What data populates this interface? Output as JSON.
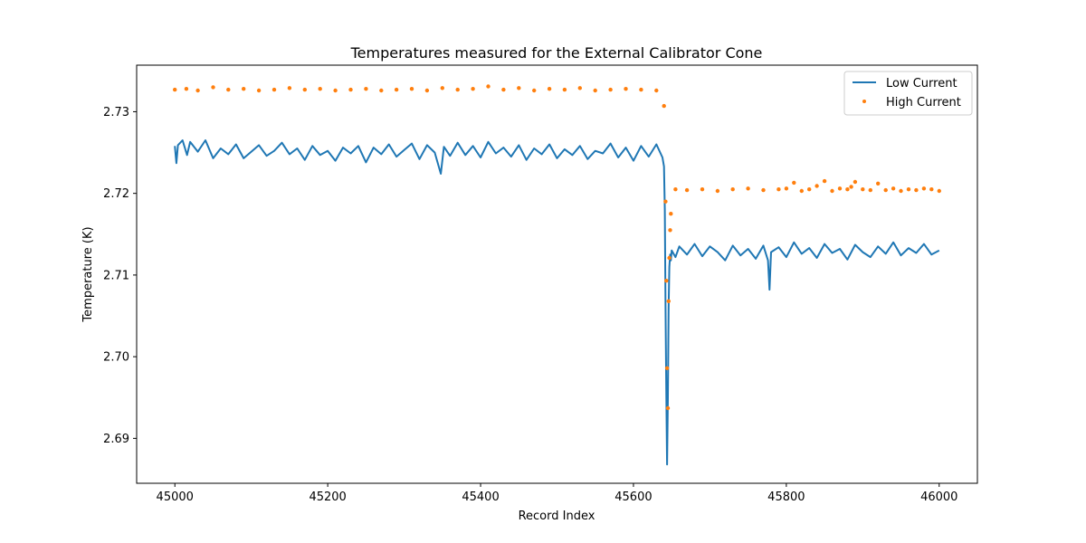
{
  "chart_data": {
    "type": "line",
    "title": "Temperatures measured for the External Calibrator Cone",
    "xlabel": "Record Index",
    "ylabel": "Temperature (K)",
    "xlim": [
      44950,
      46050
    ],
    "ylim": [
      2.6845,
      2.7357
    ],
    "xticks": [
      45000,
      45200,
      45400,
      45600,
      45800,
      46000
    ],
    "yticks": [
      2.69,
      2.7,
      2.71,
      2.72,
      2.73
    ],
    "ytick_labels": [
      "2.69",
      "2.70",
      "2.71",
      "2.72",
      "2.73"
    ],
    "grid": false,
    "legend_position": "top-right",
    "colors": {
      "low": "#1f77b4",
      "high": "#ff7f0e"
    },
    "series": [
      {
        "name": "Low Current",
        "kind": "line",
        "x": [
          45000,
          45002,
          45004,
          45010,
          45016,
          45020,
          45030,
          45040,
          45050,
          45060,
          45070,
          45080,
          45090,
          45100,
          45110,
          45120,
          45130,
          45140,
          45150,
          45160,
          45170,
          45180,
          45190,
          45200,
          45210,
          45220,
          45230,
          45240,
          45250,
          45260,
          45270,
          45280,
          45290,
          45300,
          45310,
          45320,
          45330,
          45340,
          45348,
          45352,
          45360,
          45370,
          45380,
          45390,
          45400,
          45410,
          45420,
          45430,
          45440,
          45450,
          45460,
          45470,
          45480,
          45490,
          45500,
          45510,
          45520,
          45530,
          45540,
          45550,
          45560,
          45570,
          45580,
          45590,
          45600,
          45610,
          45620,
          45630,
          45638,
          45640,
          45641,
          45642,
          45643,
          45644,
          45645,
          45646,
          45647,
          45648,
          45649,
          45650,
          45655,
          45660,
          45670,
          45680,
          45690,
          45700,
          45710,
          45720,
          45730,
          45740,
          45750,
          45760,
          45770,
          45776,
          45778,
          45780,
          45790,
          45800,
          45810,
          45820,
          45830,
          45840,
          45850,
          45860,
          45870,
          45880,
          45890,
          45900,
          45910,
          45920,
          45930,
          45940,
          45950,
          45960,
          45970,
          45980,
          45990,
          46000
        ],
        "values": [
          2.7258,
          2.7237,
          2.7259,
          2.7265,
          2.7247,
          2.7263,
          2.7251,
          2.7265,
          2.7243,
          2.7255,
          2.7248,
          2.726,
          2.7243,
          2.7251,
          2.7259,
          2.7246,
          2.7252,
          2.7262,
          2.7248,
          2.7255,
          2.7241,
          2.7258,
          2.7247,
          2.7252,
          2.724,
          2.7256,
          2.7249,
          2.7258,
          2.7238,
          2.7256,
          2.7248,
          2.726,
          2.7245,
          2.7253,
          2.7261,
          2.7242,
          2.7259,
          2.725,
          2.7224,
          2.7257,
          2.7246,
          2.7262,
          2.7247,
          2.7258,
          2.7244,
          2.7263,
          2.7249,
          2.7256,
          2.7245,
          2.7259,
          2.7241,
          2.7255,
          2.7248,
          2.726,
          2.7243,
          2.7254,
          2.7247,
          2.7258,
          2.7242,
          2.7252,
          2.7249,
          2.7261,
          2.7244,
          2.7256,
          2.724,
          2.7258,
          2.7245,
          2.726,
          2.7244,
          2.7233,
          2.718,
          2.706,
          2.695,
          2.6868,
          2.695,
          2.706,
          2.711,
          2.7125,
          2.7118,
          2.713,
          2.7122,
          2.7135,
          2.7125,
          2.7138,
          2.7123,
          2.7135,
          2.7128,
          2.7118,
          2.7136,
          2.7124,
          2.7132,
          2.712,
          2.7136,
          2.7118,
          2.7082,
          2.7128,
          2.7134,
          2.7122,
          2.714,
          2.7126,
          2.7133,
          2.7121,
          2.7138,
          2.7127,
          2.7132,
          2.7119,
          2.7137,
          2.7128,
          2.7122,
          2.7135,
          2.7126,
          2.714,
          2.7124,
          2.7133,
          2.7127,
          2.7138,
          2.7125,
          2.713
        ]
      },
      {
        "name": "High Current",
        "kind": "scatter",
        "x": [
          45000,
          45015,
          45030,
          45050,
          45070,
          45090,
          45110,
          45130,
          45150,
          45170,
          45190,
          45210,
          45230,
          45250,
          45270,
          45290,
          45310,
          45330,
          45350,
          45370,
          45390,
          45410,
          45430,
          45450,
          45470,
          45490,
          45510,
          45530,
          45550,
          45570,
          45590,
          45610,
          45630,
          45640,
          45642,
          45643,
          45644,
          45645,
          45646,
          45647,
          45648,
          45649,
          45655,
          45670,
          45690,
          45710,
          45730,
          45750,
          45770,
          45790,
          45800,
          45810,
          45820,
          45830,
          45840,
          45850,
          45860,
          45870,
          45880,
          45885,
          45890,
          45900,
          45910,
          45920,
          45930,
          45940,
          45950,
          45960,
          45970,
          45980,
          45990,
          46000
        ],
        "values": [
          2.7327,
          2.7328,
          2.7326,
          2.733,
          2.7327,
          2.7328,
          2.7326,
          2.7327,
          2.7329,
          2.7327,
          2.7328,
          2.7326,
          2.7327,
          2.7328,
          2.7326,
          2.7327,
          2.7328,
          2.7326,
          2.7329,
          2.7327,
          2.7328,
          2.7331,
          2.7327,
          2.7329,
          2.7326,
          2.7328,
          2.7327,
          2.7329,
          2.7326,
          2.7327,
          2.7328,
          2.7327,
          2.7326,
          2.7307,
          2.719,
          2.7093,
          2.6986,
          2.6937,
          2.7068,
          2.7121,
          2.7155,
          2.7175,
          2.7205,
          2.7204,
          2.7205,
          2.7203,
          2.7205,
          2.7206,
          2.7204,
          2.7205,
          2.7206,
          2.7213,
          2.7203,
          2.7205,
          2.7209,
          2.7215,
          2.7203,
          2.7206,
          2.7205,
          2.7208,
          2.7214,
          2.7205,
          2.7204,
          2.7212,
          2.7204,
          2.7206,
          2.7203,
          2.7205,
          2.7204,
          2.7206,
          2.7205,
          2.7203
        ]
      }
    ]
  }
}
